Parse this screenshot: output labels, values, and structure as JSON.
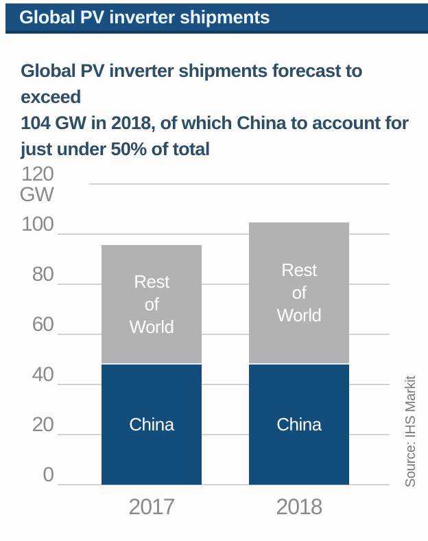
{
  "header": {
    "title": "Global PV inverter shipments"
  },
  "subtitle": {
    "lines": [
      "Global PV inverter shipments forecast to exceed",
      "104 GW in 2018, of which China to account for",
      "just under 50% of total"
    ]
  },
  "source": {
    "text": "Source: IHS Markit"
  },
  "colors": {
    "band_blue": "#1A5080",
    "band_border": "#123C62",
    "bar_blue": "#134D7C",
    "bar_gray": "#B2B2B4",
    "gridline": "#D2D2D2",
    "tick_text": "#8A8A8A",
    "subtitle_text": "#2E4E66",
    "segment_label_text": "#FFFFFF",
    "source_text": "#7A7A7A"
  },
  "chart_data": {
    "type": "bar",
    "stacked": true,
    "title": "Global PV inverter shipments",
    "unit": "GW",
    "xlabel": "",
    "ylabel": "GW",
    "ylim": [
      0,
      120
    ],
    "grid": true,
    "legend": "labels-inside-bars",
    "categories": [
      "2017",
      "2018"
    ],
    "series": [
      {
        "name": "China",
        "bar_label": "China",
        "color": "#134D7C",
        "values": [
          48,
          48
        ]
      },
      {
        "name": "Rest of World",
        "bar_label": "Rest\nof\nWorld",
        "color": "#B2B2B4",
        "values": [
          47,
          56
        ]
      }
    ],
    "totals": [
      95,
      104
    ],
    "yticks": [
      {
        "value": 0,
        "label": "0"
      },
      {
        "value": 20,
        "label": "20"
      },
      {
        "value": 40,
        "label": "40"
      },
      {
        "value": 60,
        "label": "60"
      },
      {
        "value": 80,
        "label": "80"
      },
      {
        "value": 100,
        "label": "100"
      },
      {
        "value": 120,
        "label": "120 GW"
      }
    ]
  }
}
